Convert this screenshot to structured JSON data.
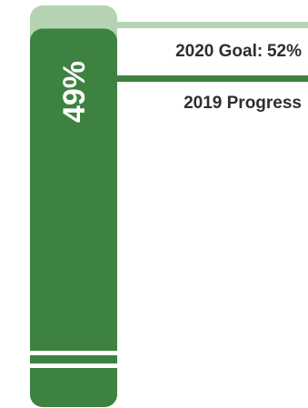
{
  "chart_data": {
    "type": "bar",
    "orientation": "vertical",
    "categories": [
      "2019 Progress"
    ],
    "values": [
      49
    ],
    "value_label": "49%",
    "goal": {
      "label": "2020 Goal",
      "value": 52,
      "value_label": "52%"
    },
    "ylim": [
      0,
      100
    ],
    "axis_break": true,
    "grid": false,
    "title": "",
    "xlabel": "",
    "ylabel": ""
  },
  "labels": {
    "goal_name": "2020 Goal:",
    "goal_value": "52%",
    "progress": "2019 Progress"
  },
  "colors": {
    "progress_bar": "#3d8241",
    "goal_bar": "#b5d3b3",
    "text": "#2e2e2e",
    "bar_label": "#ffffff",
    "background": "#ffffff"
  }
}
